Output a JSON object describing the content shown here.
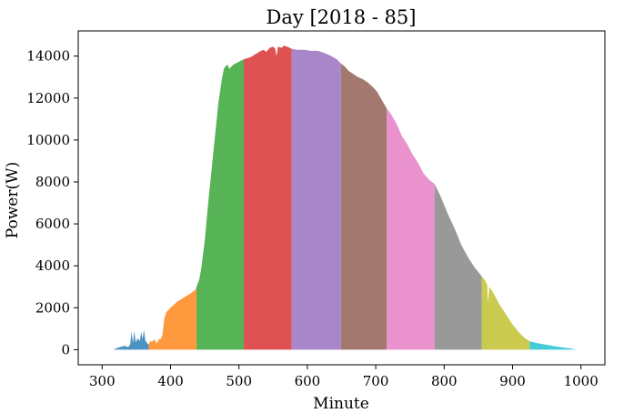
{
  "chart_data": {
    "type": "area",
    "title": "Day [2018 - 85]",
    "xlabel": "Minute",
    "ylabel": "Power(W)",
    "xlim": [
      265,
      1035
    ],
    "ylim": [
      -720,
      15200
    ],
    "xticks": [
      300,
      400,
      500,
      600,
      700,
      800,
      900,
      1000
    ],
    "yticks": [
      0,
      2000,
      4000,
      6000,
      8000,
      10000,
      12000,
      14000
    ],
    "grid": false,
    "legend": "none",
    "series": [
      {
        "color": "#1f77b4",
        "points": [
          [
            316,
            0
          ],
          [
            322,
            80
          ],
          [
            328,
            150
          ],
          [
            334,
            180
          ],
          [
            338,
            120
          ],
          [
            341,
            250
          ],
          [
            343,
            850
          ],
          [
            345,
            300
          ],
          [
            347,
            900
          ],
          [
            349,
            350
          ],
          [
            352,
            550
          ],
          [
            355,
            400
          ],
          [
            357,
            850
          ],
          [
            359,
            500
          ],
          [
            361,
            950
          ],
          [
            363,
            450
          ],
          [
            366,
            300
          ],
          [
            368,
            250
          ]
        ]
      },
      {
        "color": "#ff7f0e",
        "points": [
          [
            368,
            250
          ],
          [
            370,
            400
          ],
          [
            373,
            380
          ],
          [
            376,
            500
          ],
          [
            380,
            300
          ],
          [
            383,
            500
          ],
          [
            386,
            520
          ],
          [
            388,
            700
          ],
          [
            391,
            1500
          ],
          [
            394,
            1800
          ],
          [
            397,
            1900
          ],
          [
            400,
            2000
          ],
          [
            405,
            2150
          ],
          [
            410,
            2300
          ],
          [
            415,
            2400
          ],
          [
            420,
            2500
          ],
          [
            425,
            2600
          ],
          [
            430,
            2700
          ],
          [
            434,
            2800
          ],
          [
            436,
            2850
          ],
          [
            438,
            3000
          ]
        ]
      },
      {
        "color": "#2ca02c",
        "points": [
          [
            438,
            3000
          ],
          [
            442,
            3350
          ],
          [
            445,
            3900
          ],
          [
            450,
            5200
          ],
          [
            455,
            7000
          ],
          [
            460,
            8600
          ],
          [
            465,
            10200
          ],
          [
            470,
            11800
          ],
          [
            475,
            12900
          ],
          [
            478,
            13400
          ],
          [
            480,
            13500
          ],
          [
            483,
            13600
          ],
          [
            486,
            13400
          ],
          [
            489,
            13500
          ],
          [
            492,
            13600
          ],
          [
            495,
            13650
          ],
          [
            498,
            13700
          ],
          [
            501,
            13750
          ],
          [
            504,
            13800
          ],
          [
            507,
            13850
          ]
        ]
      },
      {
        "color": "#d62728",
        "points": [
          [
            507,
            13850
          ],
          [
            512,
            13900
          ],
          [
            517,
            13950
          ],
          [
            522,
            14050
          ],
          [
            527,
            14150
          ],
          [
            532,
            14250
          ],
          [
            536,
            14300
          ],
          [
            540,
            14200
          ],
          [
            545,
            14400
          ],
          [
            550,
            14450
          ],
          [
            553,
            14350
          ],
          [
            555,
            14000
          ],
          [
            557,
            14450
          ],
          [
            562,
            14400
          ],
          [
            566,
            14500
          ],
          [
            570,
            14450
          ],
          [
            574,
            14400
          ],
          [
            577,
            14350
          ]
        ]
      },
      {
        "color": "#9467bd",
        "points": [
          [
            577,
            14350
          ],
          [
            585,
            14300
          ],
          [
            595,
            14300
          ],
          [
            605,
            14250
          ],
          [
            615,
            14250
          ],
          [
            625,
            14150
          ],
          [
            635,
            14000
          ],
          [
            643,
            13850
          ],
          [
            649,
            13650
          ]
        ]
      },
      {
        "color": "#8c564b",
        "points": [
          [
            649,
            13650
          ],
          [
            655,
            13500
          ],
          [
            660,
            13300
          ],
          [
            667,
            13150
          ],
          [
            674,
            13000
          ],
          [
            681,
            12900
          ],
          [
            688,
            12750
          ],
          [
            695,
            12550
          ],
          [
            702,
            12300
          ],
          [
            709,
            11900
          ],
          [
            716,
            11500
          ]
        ]
      },
      {
        "color": "#e377c2",
        "points": [
          [
            716,
            11500
          ],
          [
            722,
            11250
          ],
          [
            730,
            10800
          ],
          [
            738,
            10200
          ],
          [
            746,
            9800
          ],
          [
            754,
            9300
          ],
          [
            762,
            8900
          ],
          [
            770,
            8400
          ],
          [
            778,
            8100
          ],
          [
            786,
            7900
          ]
        ]
      },
      {
        "color": "#7f7f7f",
        "points": [
          [
            786,
            7900
          ],
          [
            795,
            7300
          ],
          [
            805,
            6500
          ],
          [
            815,
            5800
          ],
          [
            825,
            5000
          ],
          [
            835,
            4400
          ],
          [
            845,
            3900
          ],
          [
            855,
            3500
          ]
        ]
      },
      {
        "color": "#bcbd22",
        "points": [
          [
            855,
            3500
          ],
          [
            860,
            3300
          ],
          [
            863,
            3100
          ],
          [
            864,
            2200
          ],
          [
            866,
            3000
          ],
          [
            872,
            2700
          ],
          [
            880,
            2200
          ],
          [
            890,
            1700
          ],
          [
            900,
            1200
          ],
          [
            910,
            800
          ],
          [
            918,
            550
          ],
          [
            925,
            400
          ]
        ]
      },
      {
        "color": "#17becf",
        "points": [
          [
            925,
            400
          ],
          [
            935,
            320
          ],
          [
            945,
            260
          ],
          [
            955,
            200
          ],
          [
            965,
            150
          ],
          [
            975,
            100
          ],
          [
            985,
            60
          ],
          [
            993,
            0
          ]
        ]
      }
    ]
  }
}
